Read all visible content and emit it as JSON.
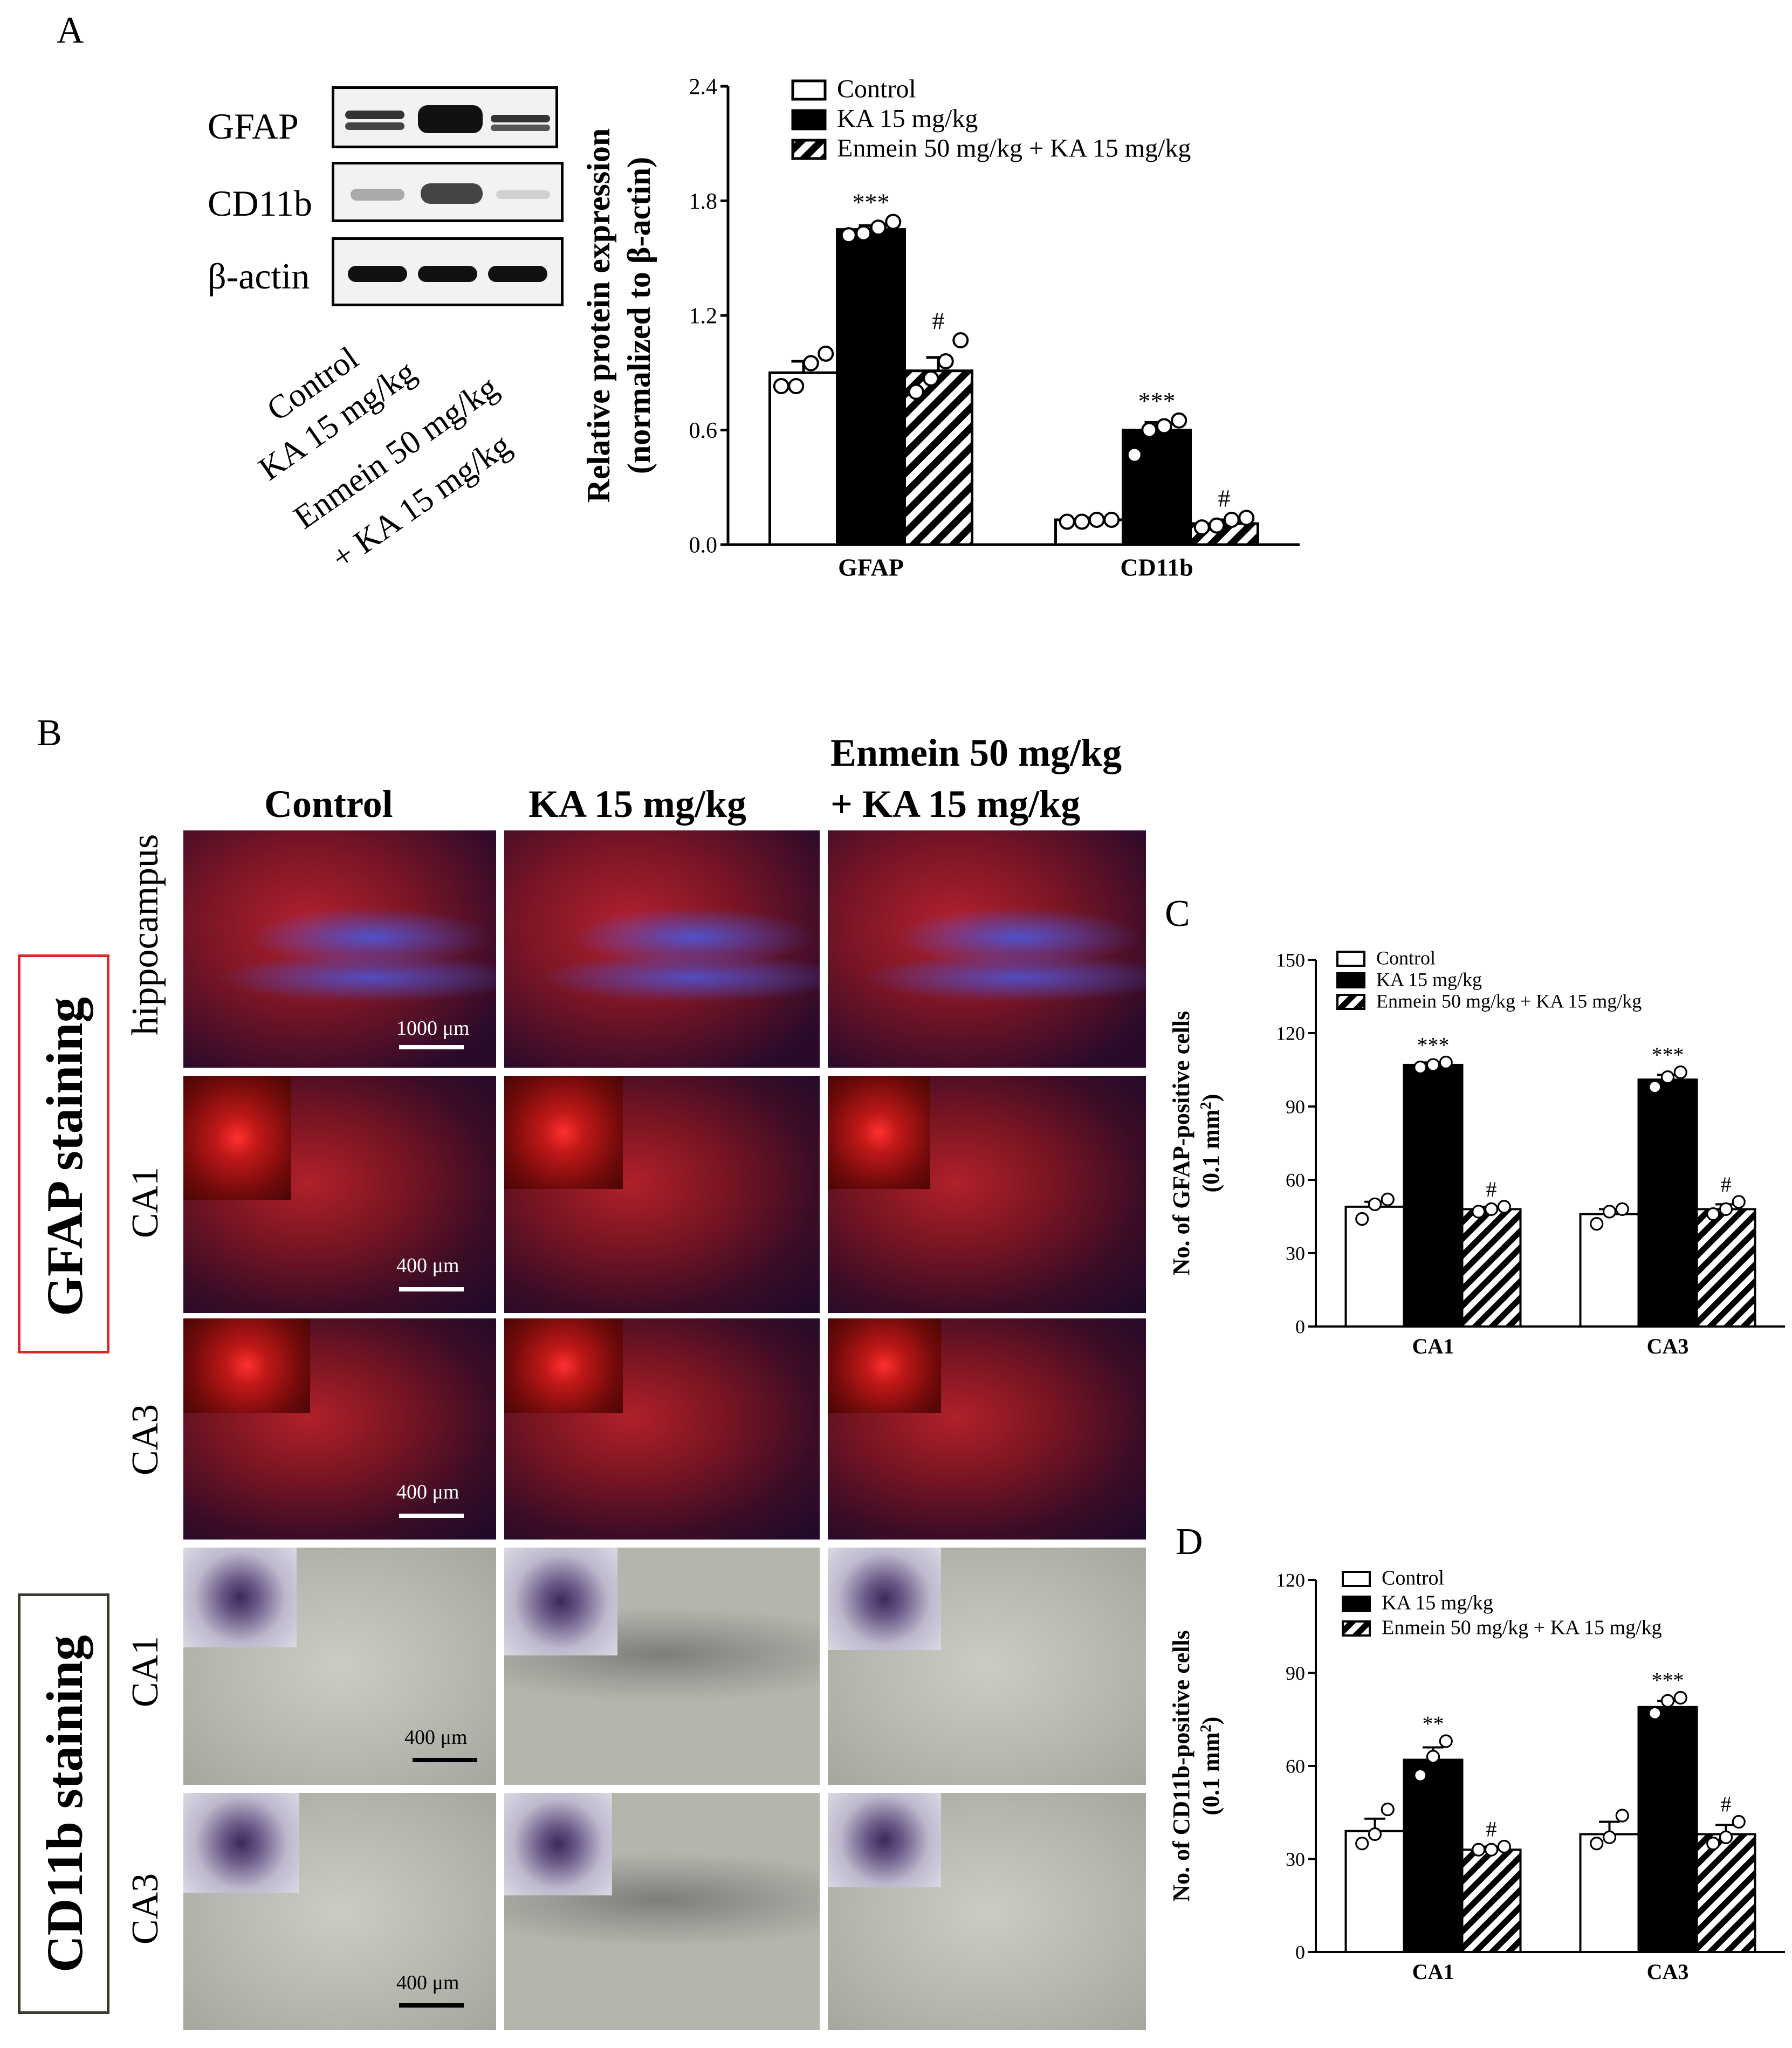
{
  "panelA": {
    "letter": "A",
    "blot_labels": [
      "GFAP",
      "CD11b",
      "β-actin"
    ],
    "lane_labels": [
      "Control",
      "KA 15 mg/kg",
      "Enmein 50 mg/kg",
      "+ KA 15 mg/kg"
    ],
    "chart_data": {
      "type": "bar",
      "title": "",
      "categories": [
        "GFAP",
        "CD11b"
      ],
      "ylabel_line1": "Relative protein expression",
      "ylabel_line2": "(normalized to β-actin)",
      "ylim": [
        0,
        2.4
      ],
      "yticks": [
        "0.0",
        "0.6",
        "1.2",
        "1.8",
        "2.4"
      ],
      "legend": [
        "Control",
        "KA 15 mg/kg",
        "Enmein 50 mg/kg + KA 15 mg/kg"
      ],
      "legend_position": "top",
      "series": [
        {
          "name": "Control",
          "values": [
            0.9,
            0.13
          ],
          "err": [
            0.06,
            0.01
          ],
          "points": [
            [
              0.83,
              0.83,
              0.95,
              1.0
            ],
            [
              0.12,
              0.12,
              0.13,
              0.13
            ]
          ],
          "marks": [
            "",
            ""
          ]
        },
        {
          "name": "KA 15 mg/kg",
          "values": [
            1.65,
            0.6
          ],
          "err": [
            0.02,
            0.04
          ],
          "points": [
            [
              1.62,
              1.63,
              1.66,
              1.69
            ],
            [
              0.47,
              0.6,
              0.62,
              0.65
            ]
          ],
          "marks": [
            "***",
            "***"
          ]
        },
        {
          "name": "Enmein 50 mg/kg + KA 15 mg/kg",
          "values": [
            0.91,
            0.11
          ],
          "err": [
            0.07,
            0.02
          ],
          "points": [
            [
              0.8,
              0.87,
              0.96,
              1.07
            ],
            [
              0.09,
              0.1,
              0.13,
              0.14
            ]
          ],
          "marks": [
            "#",
            "#"
          ]
        }
      ]
    }
  },
  "panelB": {
    "letter": "B",
    "col_headers": [
      "Control",
      "KA 15 mg/kg",
      "Enmein 50 mg/kg",
      "+ KA 15 mg/kg"
    ],
    "row_labels": [
      "hippocampus",
      "CA1",
      "CA3",
      "CA1",
      "CA3"
    ],
    "stain_labels": [
      "GFAP staining",
      "CD11b staining"
    ],
    "stain_colors": [
      "#e0262a",
      "#3a3a2a"
    ],
    "scale_labels": [
      "1000 μm",
      "400 μm",
      "400 μm",
      "400 μm",
      "400 μm"
    ]
  },
  "panelC": {
    "letter": "C",
    "chart_data": {
      "type": "bar",
      "title": "",
      "categories": [
        "CA1",
        "CA3"
      ],
      "ylabel_line1": "No. of GFAP-positive cells",
      "ylabel_line2": "(0.1 mm",
      "ylabel_sup": "2",
      "ylabel_close": ")",
      "ylim": [
        0,
        150
      ],
      "yticks": [
        "0",
        "30",
        "60",
        "90",
        "120",
        "150"
      ],
      "legend": [
        "Control",
        "KA 15 mg/kg",
        "Enmein 50 mg/kg + KA 15 mg/kg"
      ],
      "legend_position": "top",
      "series": [
        {
          "name": "Control",
          "values": [
            49,
            46
          ],
          "err": [
            2,
            2
          ],
          "points": [
            [
              44,
              50,
              52
            ],
            [
              42,
              47,
              48
            ]
          ],
          "marks": [
            "",
            ""
          ]
        },
        {
          "name": "KA 15 mg/kg",
          "values": [
            107,
            101
          ],
          "err": [
            1,
            2
          ],
          "points": [
            [
              106,
              107,
              108
            ],
            [
              98,
              102,
              104
            ]
          ],
          "marks": [
            "***",
            "***"
          ]
        },
        {
          "name": "Enmein 50 mg/kg + KA 15 mg/kg",
          "values": [
            48,
            48
          ],
          "err": [
            1,
            2
          ],
          "points": [
            [
              47,
              48,
              49
            ],
            [
              46,
              48,
              51
            ]
          ],
          "marks": [
            "#",
            "#"
          ]
        }
      ]
    }
  },
  "panelD": {
    "letter": "D",
    "chart_data": {
      "type": "bar",
      "title": "",
      "categories": [
        "CA1",
        "CA3"
      ],
      "ylabel_line1": "No. of CD11b-positive cells",
      "ylabel_line2": "(0.1 mm",
      "ylabel_sup": "2",
      "ylabel_close": ")",
      "ylim": [
        0,
        120
      ],
      "yticks": [
        "0",
        "30",
        "60",
        "90",
        "120"
      ],
      "legend": [
        "Control",
        "KA 15 mg/kg",
        "Enmein 50 mg/kg + KA 15 mg/kg"
      ],
      "legend_position": "top",
      "series": [
        {
          "name": "Control",
          "values": [
            39,
            38
          ],
          "err": [
            4,
            4
          ],
          "points": [
            [
              35,
              38,
              46
            ],
            [
              35,
              37,
              44
            ]
          ],
          "marks": [
            "",
            ""
          ]
        },
        {
          "name": "KA 15 mg/kg",
          "values": [
            62,
            79
          ],
          "err": [
            4,
            2
          ],
          "points": [
            [
              57,
              63,
              68
            ],
            [
              77,
              81,
              82
            ]
          ],
          "marks": [
            "**",
            "***"
          ]
        },
        {
          "name": "Enmein 50 mg/kg + KA 15 mg/kg",
          "values": [
            33,
            38
          ],
          "err": [
            1,
            3
          ],
          "points": [
            [
              33,
              33,
              34
            ],
            [
              35,
              37,
              42
            ]
          ],
          "marks": [
            "#",
            "#"
          ]
        }
      ]
    }
  }
}
